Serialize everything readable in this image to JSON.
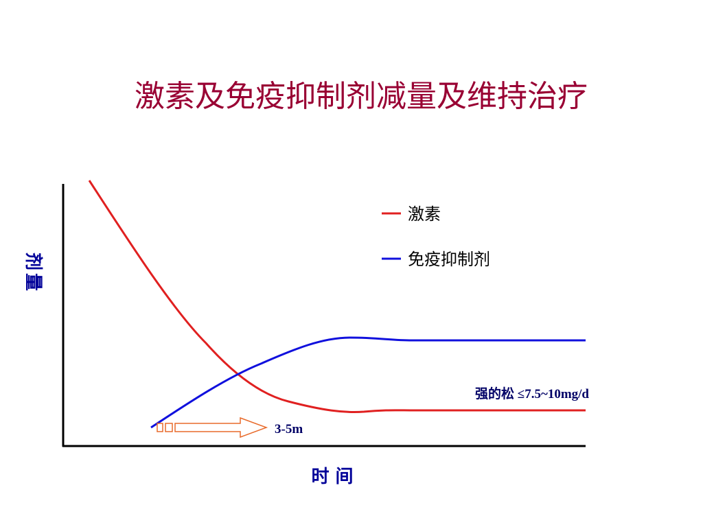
{
  "title": "激素及免疫抑制剂减量及维持治疗",
  "y_label": "剂量",
  "x_label": "时 间",
  "legend": [
    "激素",
    "免疫抑制剂"
  ],
  "annotations": {
    "maintenance": "强的松 ≤7.5~10mg/d",
    "duration": "3-5m"
  }
}
